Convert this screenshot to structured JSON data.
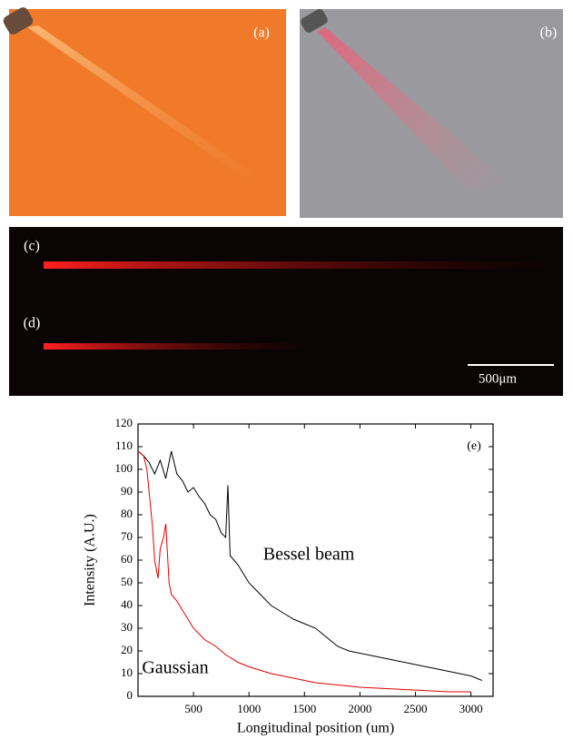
{
  "panel_labels": [
    "(a)",
    "(b)",
    "(c)",
    "(d)"
  ],
  "scale_bar": "500μm",
  "chart_data": {
    "type": "line",
    "xlabel": "Longitudinal position (um)",
    "ylabel": "Intensity (A.U.)",
    "annotations": [
      "(e)",
      "Bessel beam",
      "Gaussian"
    ],
    "xlim": [
      0,
      3200
    ],
    "xticks": [
      500,
      1000,
      1500,
      2000,
      2500,
      3000
    ],
    "ylim": [
      0,
      120
    ],
    "yticks": [
      0,
      10,
      20,
      30,
      40,
      50,
      60,
      70,
      80,
      90,
      100,
      110,
      120
    ],
    "series": [
      {
        "color": "#000000",
        "x": [
          0,
          50,
          100,
          150,
          200,
          250,
          300,
          350,
          400,
          450,
          500,
          550,
          600,
          650,
          700,
          750,
          790,
          810,
          830,
          900,
          1000,
          1100,
          1200,
          1300,
          1400,
          1500,
          1600,
          1700,
          1800,
          1900,
          2000,
          2200,
          2400,
          2600,
          2800,
          3000,
          3100
        ],
        "values": [
          108,
          106,
          103,
          98,
          104,
          96,
          108,
          98,
          95,
          90,
          92,
          88,
          85,
          80,
          78,
          72,
          70,
          93,
          62,
          58,
          50,
          45,
          40,
          37,
          34,
          32,
          30,
          26,
          22,
          20,
          19,
          17,
          15,
          13,
          11,
          9,
          7
        ]
      },
      {
        "color": "#e00000",
        "x": [
          0,
          50,
          80,
          100,
          130,
          150,
          180,
          200,
          230,
          250,
          280,
          300,
          350,
          400,
          500,
          600,
          700,
          800,
          900,
          1000,
          1200,
          1400,
          1600,
          1800,
          2000,
          2400,
          2800,
          3000
        ],
        "values": [
          108,
          106,
          100,
          90,
          75,
          60,
          52,
          65,
          70,
          76,
          50,
          45,
          42,
          38,
          30,
          25,
          22,
          18,
          15,
          13,
          10,
          8,
          6,
          5,
          4,
          3,
          2,
          2
        ]
      }
    ]
  }
}
